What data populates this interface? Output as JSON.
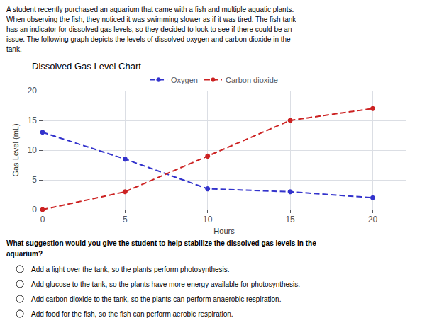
{
  "chart_data": {
    "type": "line",
    "title": "Dissolved Gas Level Chart",
    "xlabel": "Hours",
    "ylabel": "Gas Level (mL)",
    "x": [
      0,
      5,
      10,
      15,
      20
    ],
    "series": [
      {
        "name": "Oxygen",
        "color": "#3333cc",
        "values": [
          13,
          8.5,
          3.5,
          3.0,
          2.0
        ]
      },
      {
        "name": "Carbon dioxide",
        "color": "#cc2222",
        "values": [
          0,
          3.0,
          9.0,
          15.0,
          17.0
        ]
      }
    ],
    "xlim": [
      0,
      22
    ],
    "ylim": [
      0,
      20
    ],
    "xticks": [
      0,
      5,
      10,
      15,
      20
    ],
    "yticks": [
      0,
      5,
      10,
      15,
      20
    ],
    "grid": true,
    "legend": "top",
    "marker": "circle",
    "line_style": "dashed"
  },
  "paragraph": [
    "A student recently purchased an aquarium that came with a fish and multiple aquatic plants.",
    "When observing the fish, they noticed it was swimming slower as if it was tired. The fish tank",
    "has an indicator for dissolved gas levels, so they decided to look to see if there could be an",
    "issue. The following graph depicts the levels of dissolved oxygen and carbon dioxide in the",
    "tank."
  ],
  "question": "What suggestion would you give the student to help stabilize the dissolved gas levels in the\naquarium?",
  "choices": [
    "Add a light over the tank, so the plants perform photosynthesis.",
    "Add glucose to the tank, so the plants have more energy available for photosynthesis.",
    "Add carbon dioxide to the tank, so the plants can perform anaerobic respiration.",
    "Add food for the fish, so the fish can perform aerobic respiration."
  ]
}
